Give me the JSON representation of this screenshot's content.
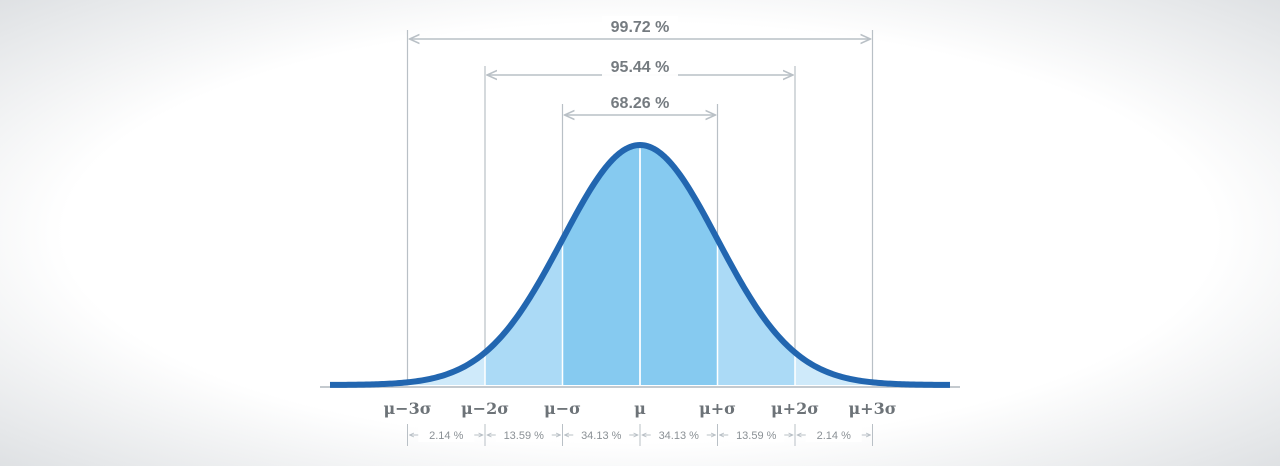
{
  "colors": {
    "curve": "#2266b0",
    "fill_inner": "#86caf0",
    "fill_middle": "#abdaf6",
    "fill_outer": "#cfeafa",
    "guide": "#b9c0c6",
    "baseline": "#c4cacf",
    "frame_edge": "#dfe2e5"
  },
  "spans": [
    {
      "label": "99.72 %",
      "from": -3,
      "to": 3
    },
    {
      "label": "95.44 %",
      "from": -2,
      "to": 2
    },
    {
      "label": "68.26 %",
      "from": -1,
      "to": 1
    }
  ],
  "ticks": [
    {
      "sigma": -3,
      "label": "μ−3σ"
    },
    {
      "sigma": -2,
      "label": "μ−2σ"
    },
    {
      "sigma": -1,
      "label": "μ−σ"
    },
    {
      "sigma": 0,
      "label": "μ"
    },
    {
      "sigma": 1,
      "label": "μ+σ"
    },
    {
      "sigma": 2,
      "label": "μ+2σ"
    },
    {
      "sigma": 3,
      "label": "μ+3σ"
    }
  ],
  "segments": [
    {
      "from": -3,
      "to": -2,
      "label": "2.14 %"
    },
    {
      "from": -2,
      "to": -1,
      "label": "13.59 %"
    },
    {
      "from": -1,
      "to": 0,
      "label": "34.13 %"
    },
    {
      "from": 0,
      "to": 1,
      "label": "34.13 %"
    },
    {
      "from": 1,
      "to": 2,
      "label": "13.59 %"
    },
    {
      "from": 2,
      "to": 3,
      "label": "2.14 %"
    }
  ]
}
